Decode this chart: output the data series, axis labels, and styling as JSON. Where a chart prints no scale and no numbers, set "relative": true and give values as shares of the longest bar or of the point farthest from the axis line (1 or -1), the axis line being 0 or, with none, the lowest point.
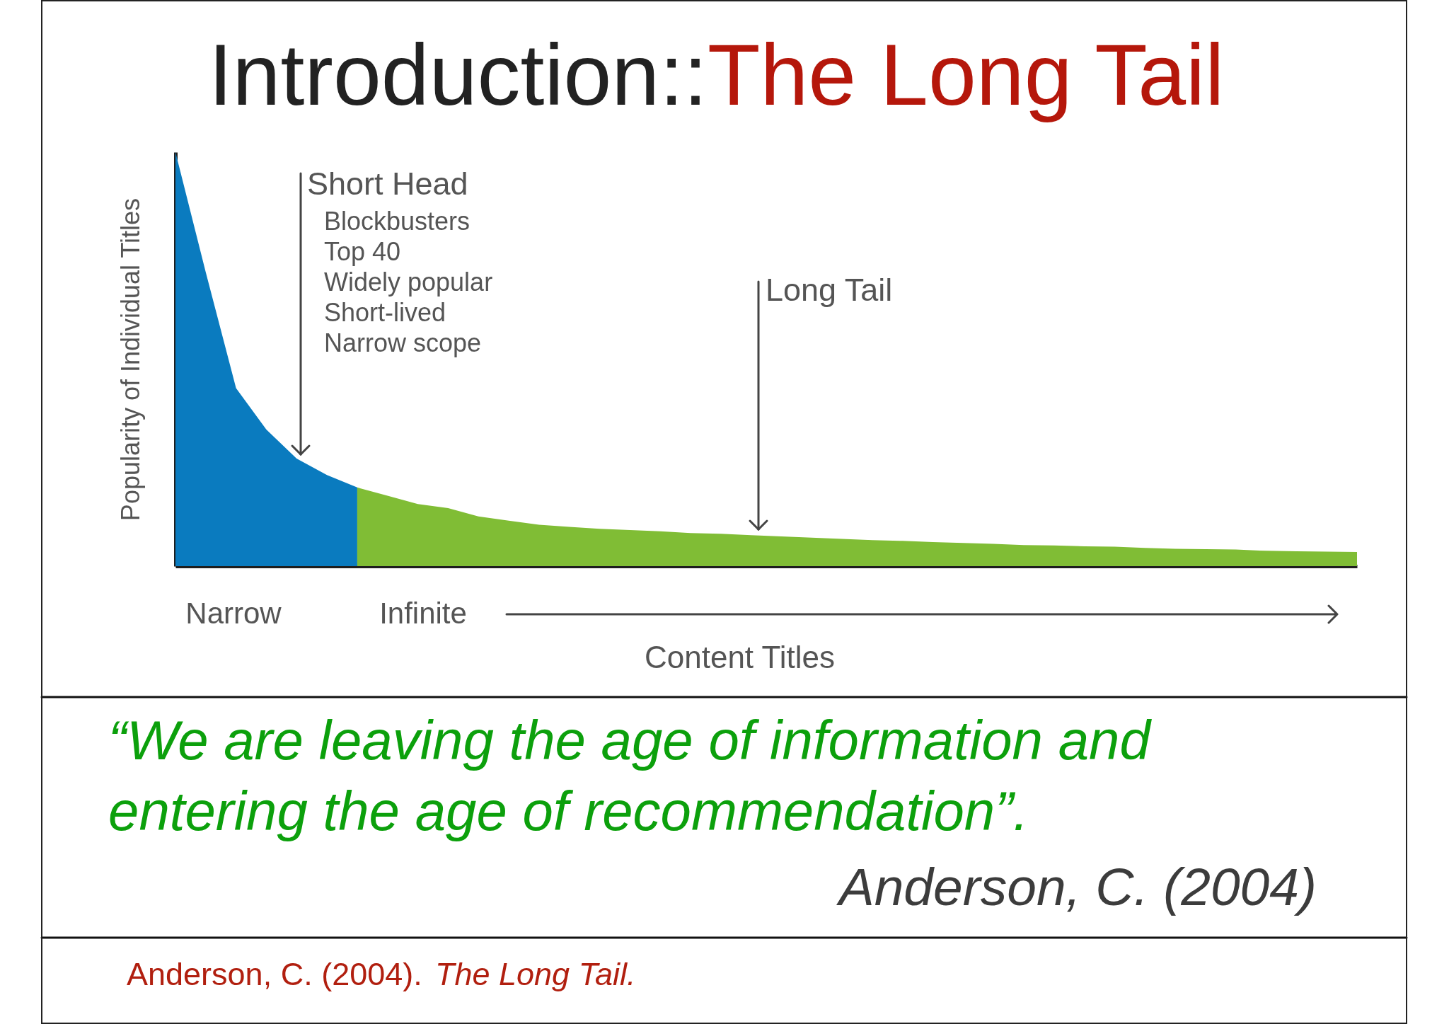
{
  "chart_data": {
    "type": "area",
    "title": "Introduction::The Long Tail",
    "xlabel": "Content Titles",
    "ylabel": "Popularity of Individual Titles",
    "relative": true,
    "categories": [
      null,
      null,
      null,
      null,
      null,
      null,
      null,
      null,
      null,
      null,
      null,
      null,
      null,
      null,
      null,
      null,
      null,
      null,
      null,
      null,
      null,
      null,
      null,
      null,
      null,
      null,
      null,
      null,
      null,
      null,
      null,
      null,
      null,
      null,
      null,
      null,
      null,
      null,
      null,
      null
    ],
    "series": [
      {
        "name": "Short Head",
        "color": "#0a7bbf",
        "values": [
          1,
          0.71,
          0.43,
          0.33,
          0.26,
          0.22,
          0.19,
          null,
          null,
          null,
          null,
          null,
          null,
          null,
          null,
          null,
          null,
          null,
          null,
          null,
          null,
          null,
          null,
          null,
          null,
          null,
          null,
          null,
          null,
          null,
          null,
          null,
          null,
          null,
          null,
          null,
          null,
          null,
          null,
          null
        ]
      },
      {
        "name": "Long Tail",
        "color": "#80bd35",
        "values": [
          null,
          null,
          null,
          null,
          null,
          null,
          0.19,
          0.17,
          0.15,
          0.14,
          0.12,
          0.11,
          0.1,
          0.095,
          0.09,
          0.087,
          0.084,
          0.08,
          0.078,
          0.075,
          0.072,
          0.069,
          0.066,
          0.063,
          0.061,
          0.058,
          0.056,
          0.054,
          0.051,
          0.05,
          0.048,
          0.047,
          0.044,
          0.042,
          0.041,
          0.04,
          0.037,
          0.036,
          0.035,
          0.034
        ]
      }
    ],
    "annotations": [
      "Blockbusters",
      "Top 40",
      "Widely popular",
      "Short-lived",
      "Narrow scope",
      "Narrow",
      "Infinite",
      "“We are leaving the age of information and\nentering the age of recommendation”.",
      "Anderson, C. (2004)",
      "Anderson, C. (2004).",
      "The Long Tail."
    ]
  }
}
